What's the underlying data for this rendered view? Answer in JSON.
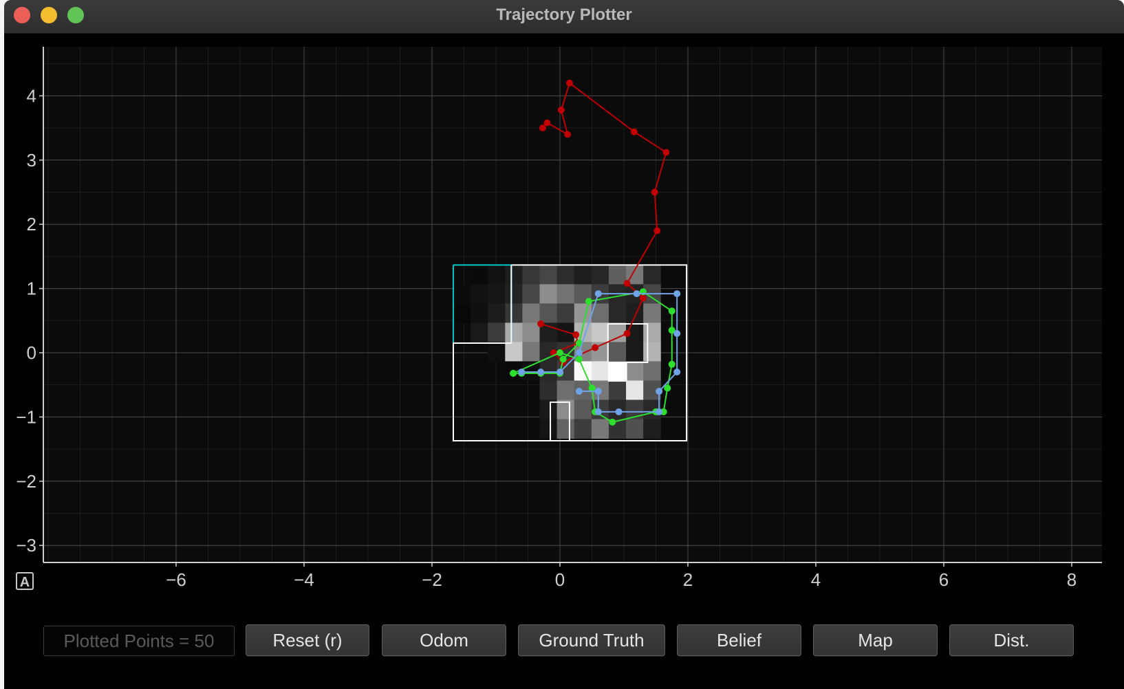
{
  "window": {
    "title": "Trajectory Plotter",
    "traffic_lights": {
      "close": "#ec5f57",
      "minimize": "#f4bd2f",
      "zoom": "#5fc454"
    }
  },
  "auto_range_label": "A",
  "status": {
    "plotted_points": "Plotted Points = 50"
  },
  "buttons": {
    "reset": "Reset (r)",
    "odom": "Odom",
    "ground_truth": "Ground Truth",
    "belief": "Belief",
    "map": "Map",
    "dist": "Dist."
  },
  "colors": {
    "odom": "#c00000",
    "ground_truth": "#2ee02e",
    "belief": "#6fa2e6",
    "map": "#ffffff",
    "grid_highlight": "#00c8c8"
  },
  "chart_data": {
    "type": "scatter",
    "xlim": [
      -8,
      8.5
    ],
    "ylim": [
      -3.3,
      4.8
    ],
    "x_ticks": [
      -6,
      -4,
      -2,
      0,
      2,
      4,
      6,
      8
    ],
    "y_ticks": [
      -3,
      -2,
      -1,
      0,
      1,
      2,
      3,
      4
    ],
    "grid": true,
    "series": [
      {
        "name": "Odom",
        "color": "#c00000",
        "points": [
          [
            -0.3,
            0.45
          ],
          [
            0.25,
            0.28
          ],
          [
            0.28,
            0.15
          ],
          [
            -0.1,
            0.0
          ],
          [
            0.05,
            -0.15
          ],
          [
            0.55,
            0.08
          ],
          [
            1.05,
            0.3
          ],
          [
            1.3,
            0.85
          ],
          [
            1.05,
            1.08
          ],
          [
            1.52,
            1.9
          ],
          [
            1.48,
            2.5
          ],
          [
            1.66,
            3.12
          ],
          [
            1.16,
            3.44
          ],
          [
            0.15,
            4.2
          ],
          [
            0.02,
            3.78
          ],
          [
            0.12,
            3.4
          ],
          [
            -0.2,
            3.58
          ],
          [
            -0.27,
            3.5
          ]
        ]
      },
      {
        "name": "Ground Truth",
        "color": "#2ee02e",
        "points": [
          [
            -0.73,
            -0.32
          ],
          [
            -0.6,
            -0.32
          ],
          [
            -0.3,
            -0.32
          ],
          [
            0.0,
            -0.32
          ],
          [
            0.05,
            -0.1
          ],
          [
            0.3,
            0.15
          ],
          [
            0.45,
            0.8
          ],
          [
            1.3,
            0.95
          ],
          [
            1.75,
            0.65
          ],
          [
            1.75,
            0.35
          ],
          [
            1.75,
            -0.18
          ],
          [
            1.68,
            -0.55
          ],
          [
            1.62,
            -0.92
          ],
          [
            1.5,
            -0.92
          ],
          [
            0.82,
            -1.08
          ],
          [
            0.55,
            -0.92
          ],
          [
            0.5,
            -0.55
          ],
          [
            0.3,
            -0.1
          ],
          [
            0.0,
            0.0
          ],
          [
            -0.73,
            -0.32
          ]
        ]
      },
      {
        "name": "Belief",
        "color": "#6fa2e6",
        "points": [
          [
            -0.6,
            -0.3
          ],
          [
            -0.3,
            -0.3
          ],
          [
            0.0,
            -0.3
          ],
          [
            0.3,
            0.0
          ],
          [
            0.6,
            0.92
          ],
          [
            1.2,
            0.92
          ],
          [
            1.83,
            0.92
          ],
          [
            1.83,
            0.3
          ],
          [
            1.83,
            -0.3
          ],
          [
            1.55,
            -0.6
          ],
          [
            1.55,
            -0.92
          ],
          [
            0.92,
            -0.92
          ],
          [
            0.6,
            -0.92
          ],
          [
            0.6,
            -0.6
          ],
          [
            0.3,
            -0.6
          ]
        ]
      }
    ]
  }
}
